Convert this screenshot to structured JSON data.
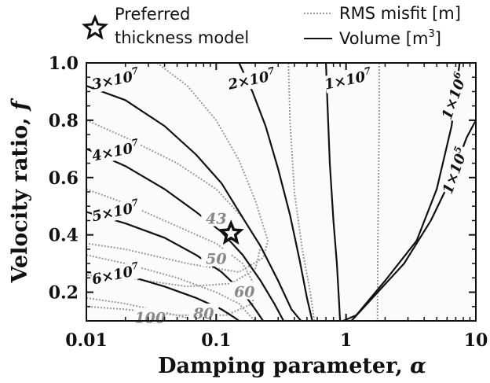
{
  "chart_data": {
    "type": "contour",
    "xlabel": "Damping parameter, ",
    "xlabel_symbol": "α",
    "ylabel": "Velocity ratio, ",
    "ylabel_symbol": "f",
    "x_scale": "log",
    "xlim": [
      0.01,
      10
    ],
    "ylim": [
      0.1,
      1.0
    ],
    "x_ticks": [
      0.01,
      0.1,
      1,
      10
    ],
    "x_tick_labels": [
      "0.01",
      "0.1",
      "1",
      "10"
    ],
    "y_ticks": [
      0.2,
      0.4,
      0.6,
      0.8,
      1.0
    ],
    "y_tick_labels": [
      "0.2",
      "0.4",
      "0.6",
      "0.8",
      "1.0"
    ],
    "grid": false,
    "legend_placement": "top",
    "legend": {
      "marker_label_line1": "Preferred",
      "marker_label_line2": "thickness model",
      "misfit_label": "RMS misfit [m]",
      "volume_label": "Volume [m",
      "volume_label_sup": "3",
      "volume_label_end": "]"
    },
    "preferred_model": {
      "alpha": 0.13,
      "f": 0.405
    },
    "volume_contours": [
      {
        "label": "3×10",
        "exp": "7",
        "label_at": [
          0.017,
          0.93
        ],
        "points": [
          [
            0.01,
            0.92
          ],
          [
            0.02,
            0.87
          ],
          [
            0.04,
            0.78
          ],
          [
            0.07,
            0.68
          ],
          [
            0.11,
            0.58
          ],
          [
            0.16,
            0.46
          ],
          [
            0.22,
            0.36
          ],
          [
            0.3,
            0.24
          ],
          [
            0.38,
            0.14
          ],
          [
            0.45,
            0.1
          ]
        ]
      },
      {
        "label": "2×10",
        "exp": "7",
        "label_at": [
          0.19,
          0.93
        ],
        "points": [
          [
            0.15,
            1.0
          ],
          [
            0.19,
            0.9
          ],
          [
            0.24,
            0.78
          ],
          [
            0.3,
            0.63
          ],
          [
            0.37,
            0.47
          ],
          [
            0.44,
            0.31
          ],
          [
            0.5,
            0.18
          ],
          [
            0.55,
            0.1
          ]
        ]
      },
      {
        "label": "4×10",
        "exp": "7",
        "label_at": [
          0.017,
          0.68
        ],
        "points": [
          [
            0.01,
            0.7
          ],
          [
            0.02,
            0.64
          ],
          [
            0.04,
            0.56
          ],
          [
            0.07,
            0.48
          ],
          [
            0.11,
            0.41
          ],
          [
            0.16,
            0.33
          ],
          [
            0.22,
            0.24
          ],
          [
            0.28,
            0.16
          ],
          [
            0.33,
            0.1
          ]
        ]
      },
      {
        "label": "5×10",
        "exp": "7",
        "label_at": [
          0.017,
          0.47
        ],
        "points": [
          [
            0.01,
            0.48
          ],
          [
            0.02,
            0.44
          ],
          [
            0.04,
            0.39
          ],
          [
            0.07,
            0.33
          ],
          [
            0.11,
            0.27
          ],
          [
            0.16,
            0.2
          ],
          [
            0.2,
            0.14
          ],
          [
            0.23,
            0.1
          ]
        ]
      },
      {
        "label": "6×10",
        "exp": "7",
        "label_at": [
          0.017,
          0.25
        ],
        "points": [
          [
            0.01,
            0.27
          ],
          [
            0.02,
            0.26
          ],
          [
            0.04,
            0.22
          ],
          [
            0.07,
            0.18
          ],
          [
            0.11,
            0.14
          ],
          [
            0.14,
            0.11
          ],
          [
            0.15,
            0.1
          ]
        ]
      },
      {
        "label": "1×10",
        "exp": "7",
        "label_at": [
          1.05,
          0.93
        ],
        "points": [
          [
            0.7,
            1.0
          ],
          [
            0.72,
            0.85
          ],
          [
            0.75,
            0.65
          ],
          [
            0.8,
            0.45
          ],
          [
            0.85,
            0.3
          ],
          [
            0.88,
            0.18
          ],
          [
            0.9,
            0.1
          ]
        ]
      },
      {
        "label": "1×10",
        "exp": "6",
        "label_at": [
          7.2,
          0.88
        ],
        "points": [
          [
            7.5,
            1.0
          ],
          [
            6.5,
            0.78
          ],
          [
            5.0,
            0.56
          ],
          [
            3.5,
            0.38
          ],
          [
            2.0,
            0.24
          ],
          [
            1.2,
            0.12
          ],
          [
            0.95,
            0.1
          ]
        ]
      },
      {
        "label": "1×10",
        "exp": "5",
        "label_at": [
          7.3,
          0.62
        ],
        "points": [
          [
            10,
            0.8
          ],
          [
            8.5,
            0.74
          ],
          [
            6.5,
            0.6
          ],
          [
            4.5,
            0.45
          ],
          [
            2.8,
            0.3
          ],
          [
            1.6,
            0.18
          ],
          [
            1.1,
            0.1
          ]
        ]
      }
    ],
    "misfit_contours": [
      {
        "label": "43",
        "label_at": [
          0.1,
          0.455
        ],
        "points": [
          [
            0.035,
            1.0
          ],
          [
            0.06,
            0.92
          ],
          [
            0.1,
            0.8
          ],
          [
            0.15,
            0.66
          ],
          [
            0.2,
            0.52
          ],
          [
            0.25,
            0.38
          ],
          [
            0.23,
            0.32
          ],
          [
            0.15,
            0.27
          ],
          [
            0.06,
            0.3
          ],
          [
            0.02,
            0.35
          ],
          [
            0.01,
            0.37
          ]
        ]
      },
      {
        "label": "50",
        "label_at": [
          0.1,
          0.315
        ],
        "points": [
          [
            0.01,
            0.8
          ],
          [
            0.02,
            0.74
          ],
          [
            0.05,
            0.65
          ],
          [
            0.1,
            0.56
          ],
          [
            0.16,
            0.46
          ],
          [
            0.22,
            0.36
          ],
          [
            0.2,
            0.28
          ],
          [
            0.13,
            0.23
          ],
          [
            0.06,
            0.22
          ],
          [
            0.02,
            0.25
          ],
          [
            0.01,
            0.26
          ]
        ]
      },
      {
        "label": "60",
        "label_at": [
          0.165,
          0.2
        ],
        "points": [
          [
            0.01,
            0.56
          ],
          [
            0.02,
            0.51
          ],
          [
            0.05,
            0.43
          ],
          [
            0.1,
            0.37
          ],
          [
            0.16,
            0.3
          ],
          [
            0.2,
            0.22
          ],
          [
            0.19,
            0.16
          ],
          [
            0.12,
            0.12
          ],
          [
            0.05,
            0.12
          ],
          [
            0.02,
            0.14
          ],
          [
            0.01,
            0.15
          ]
        ]
      },
      {
        "label": "80",
        "label_at": [
          0.08,
          0.125
        ],
        "points": [
          [
            0.01,
            0.33
          ],
          [
            0.02,
            0.3
          ],
          [
            0.05,
            0.25
          ],
          [
            0.1,
            0.2
          ],
          [
            0.15,
            0.16
          ],
          [
            0.18,
            0.12
          ],
          [
            0.2,
            0.1
          ]
        ]
      },
      {
        "label": "100",
        "label_at": [
          0.031,
          0.11
        ],
        "points": [
          [
            0.01,
            0.18
          ],
          [
            0.02,
            0.16
          ],
          [
            0.04,
            0.13
          ],
          [
            0.06,
            0.11
          ],
          [
            0.08,
            0.1
          ]
        ]
      },
      {
        "label": "",
        "label_at": null,
        "points": [
          [
            0.36,
            1.0
          ],
          [
            0.37,
            0.8
          ],
          [
            0.4,
            0.55
          ],
          [
            0.46,
            0.35
          ],
          [
            0.53,
            0.2
          ],
          [
            0.57,
            0.1
          ]
        ]
      },
      {
        "label": "",
        "label_at": null,
        "points": [
          [
            1.8,
            1.0
          ],
          [
            1.8,
            0.8
          ],
          [
            1.78,
            0.6
          ],
          [
            1.76,
            0.4
          ],
          [
            1.75,
            0.2
          ],
          [
            1.75,
            0.1
          ]
        ]
      }
    ]
  }
}
